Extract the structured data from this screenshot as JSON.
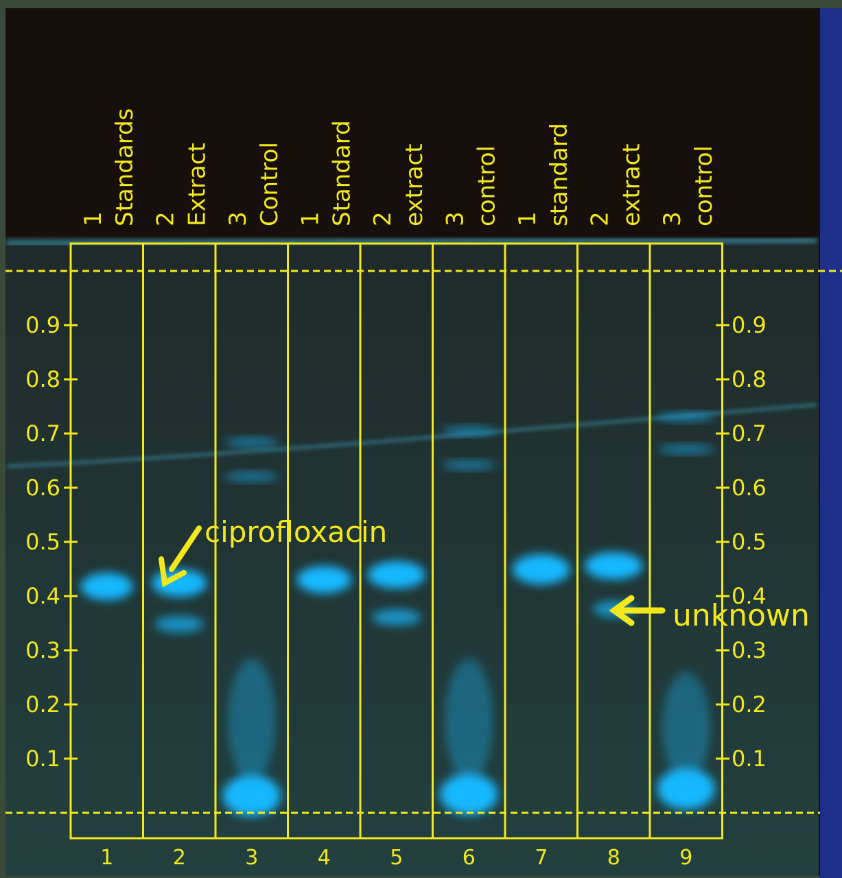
{
  "lane_labels": [
    {
      "number": "1",
      "name": "Standards"
    },
    {
      "number": "2",
      "name": "Extract"
    },
    {
      "number": "3",
      "name": "Control"
    },
    {
      "number": "1",
      "name": "Standard"
    },
    {
      "number": "2",
      "name": "extract"
    },
    {
      "number": "3",
      "name": "control"
    },
    {
      "number": "1",
      "name": "standard"
    },
    {
      "number": "2",
      "name": "extract"
    },
    {
      "number": "3",
      "name": "control"
    }
  ],
  "rf_scale": [
    0.9,
    0.8,
    0.7,
    0.6,
    0.5,
    0.4,
    0.3,
    0.2,
    0.1
  ],
  "lane_numbers": [
    1,
    2,
    3,
    4,
    5,
    6,
    7,
    8,
    9
  ],
  "annotations": {
    "ciprofloxacin": "ciprofloxacin",
    "unknown": "unknown"
  }
}
